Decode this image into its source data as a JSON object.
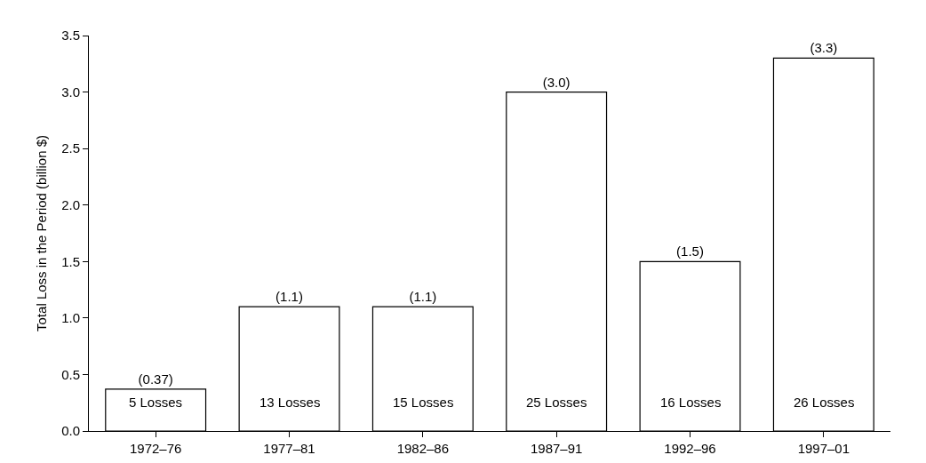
{
  "chart_data": {
    "type": "bar",
    "ylabel": "Total Loss in the Period (billion $)",
    "categories": [
      "1972–76",
      "1977–81",
      "1982–86",
      "1987–91",
      "1992–96",
      "1997–01"
    ],
    "values": [
      0.37,
      1.1,
      1.1,
      3.0,
      1.5,
      3.3
    ],
    "value_labels": [
      "(0.37)",
      "(1.1)",
      "(1.1)",
      "(3.0)",
      "(1.5)",
      "(3.3)"
    ],
    "color": "#ffffff",
    "ylim": [
      0,
      3.5
    ],
    "yticks": [
      {
        "value": 0,
        "label": "0.0"
      },
      {
        "value": 0.5,
        "label": "0.5"
      },
      {
        "value": 1,
        "label": "1.0"
      },
      {
        "value": 1.5,
        "label": "1.5"
      },
      {
        "value": 2,
        "label": "2.0"
      },
      {
        "value": 2.5,
        "label": "2.5"
      },
      {
        "value": 3,
        "label": "3.0"
      },
      {
        "value": 3.5,
        "label": "3.5"
      }
    ],
    "annotations": [
      "5 Losses",
      "13 Losses",
      "15 Losses",
      "25 Losses",
      "16 Losses",
      "26 Losses"
    ],
    "grid": false,
    "legend": false
  }
}
